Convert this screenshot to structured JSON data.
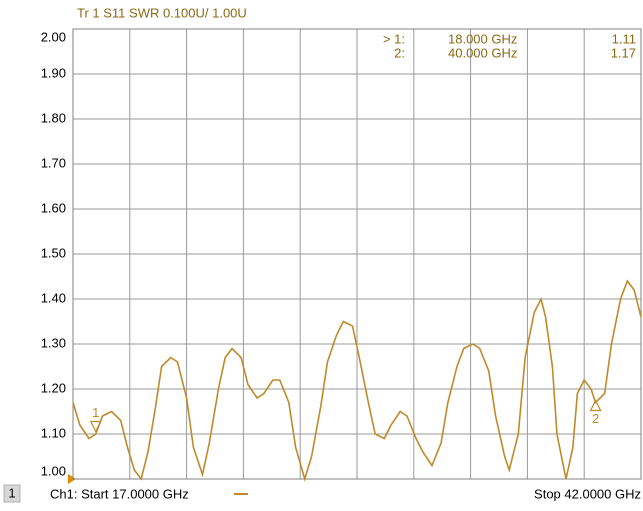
{
  "chart_data": {
    "type": "line",
    "title": "Tr 1  S11 SWR 0.100U/  1.00U",
    "xlim": [
      17,
      42
    ],
    "xticks": [
      17,
      19.5,
      22,
      24.5,
      27,
      29.5,
      32,
      34.5,
      37,
      39.5,
      42
    ],
    "ylim": [
      1,
      2
    ],
    "yticks": [
      {
        "value": 1,
        "label": "1.00"
      },
      {
        "value": 1.1,
        "label": "1.10"
      },
      {
        "value": 1.2,
        "label": "1.20"
      },
      {
        "value": 1.3,
        "label": "1.30"
      },
      {
        "value": 1.4,
        "label": "1.40"
      },
      {
        "value": 1.5,
        "label": "1.50"
      },
      {
        "value": 1.6,
        "label": "1.60"
      },
      {
        "value": 1.7,
        "label": "1.70"
      },
      {
        "value": 1.8,
        "label": "1.80"
      },
      {
        "value": 1.9,
        "label": "1.90"
      },
      {
        "value": 2,
        "label": "2.00"
      }
    ],
    "grid": true,
    "x": [
      17.0,
      17.3,
      17.7,
      18.0,
      18.3,
      18.7,
      19.1,
      19.4,
      19.7,
      20.0,
      20.3,
      20.6,
      20.9,
      21.3,
      21.6,
      22.0,
      22.3,
      22.7,
      23.0,
      23.4,
      23.7,
      24.0,
      24.4,
      24.7,
      25.1,
      25.4,
      25.8,
      26.1,
      26.5,
      26.8,
      27.2,
      27.5,
      27.9,
      28.2,
      28.6,
      28.9,
      29.3,
      29.6,
      30.0,
      30.3,
      30.7,
      31.0,
      31.4,
      31.7,
      32.1,
      32.4,
      32.8,
      33.2,
      33.5,
      33.9,
      34.2,
      34.6,
      34.9,
      35.3,
      35.6,
      36.0,
      36.2,
      36.6,
      36.9,
      37.3,
      37.6,
      37.8,
      38.1,
      38.3,
      38.7,
      39.0,
      39.2,
      39.5,
      39.8,
      40.0,
      40.4,
      40.7,
      41.1,
      41.4,
      41.7,
      42.0
    ],
    "series": [
      {
        "name": "S11",
        "color": "#c08a2a",
        "values": [
          1.17,
          1.12,
          1.09,
          1.1,
          1.14,
          1.15,
          1.13,
          1.07,
          1.02,
          1.0,
          1.06,
          1.15,
          1.25,
          1.27,
          1.26,
          1.18,
          1.07,
          1.01,
          1.08,
          1.2,
          1.27,
          1.29,
          1.27,
          1.21,
          1.18,
          1.19,
          1.22,
          1.22,
          1.17,
          1.07,
          1.0,
          1.05,
          1.16,
          1.26,
          1.32,
          1.35,
          1.34,
          1.27,
          1.17,
          1.1,
          1.09,
          1.12,
          1.15,
          1.14,
          1.09,
          1.06,
          1.03,
          1.08,
          1.17,
          1.25,
          1.29,
          1.3,
          1.29,
          1.24,
          1.14,
          1.05,
          1.02,
          1.1,
          1.27,
          1.37,
          1.4,
          1.36,
          1.25,
          1.1,
          1.0,
          1.07,
          1.19,
          1.22,
          1.2,
          1.17,
          1.19,
          1.3,
          1.4,
          1.44,
          1.42,
          1.36
        ]
      }
    ],
    "markers": [
      {
        "id": "1",
        "table_label": "> 1:",
        "x": 18,
        "x_label": "18.000 GHz",
        "value": 1.11,
        "value_label": "1.11"
      },
      {
        "id": "2",
        "table_label": "2:",
        "x": 40,
        "x_label": "40.000 GHz",
        "value": 1.17,
        "value_label": "1.17"
      }
    ],
    "channel": "1",
    "start_label": "Ch1: Start  17.0000 GHz",
    "stop_label": "Stop  42.0000 GHz"
  }
}
